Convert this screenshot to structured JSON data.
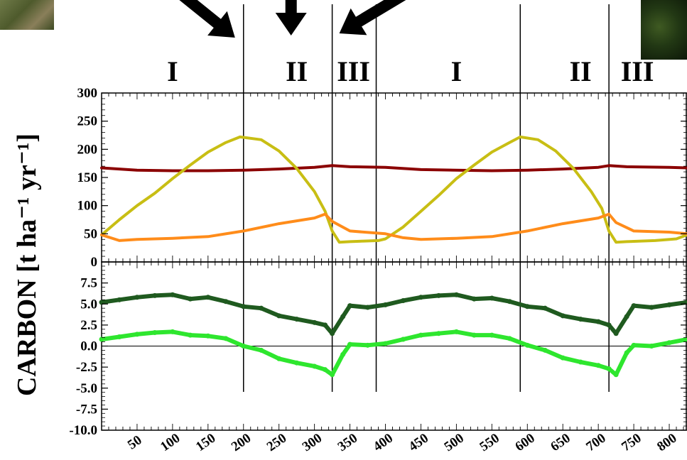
{
  "chart_data": {
    "type": "line",
    "ylabel": "CARBON [t ha⁻¹ yr⁻¹]",
    "xlim": [
      0,
      825
    ],
    "x_ticks": [
      50,
      100,
      150,
      200,
      250,
      300,
      350,
      400,
      450,
      500,
      550,
      600,
      650,
      700,
      750,
      800
    ],
    "phase_labels": [
      {
        "text": "I",
        "x": 100
      },
      {
        "text": "II",
        "x": 275
      },
      {
        "text": "III",
        "x": 355
      },
      {
        "text": "I",
        "x": 500
      },
      {
        "text": "II",
        "x": 675
      },
      {
        "text": "III",
        "x": 755
      }
    ],
    "phase_boundaries": [
      200,
      325,
      387,
      590,
      715
    ],
    "panels": [
      {
        "name": "top",
        "ylim": [
          0,
          300
        ],
        "y_ticks": [
          "300",
          "250",
          "200",
          "150",
          "100",
          "50",
          "0"
        ],
        "y_tick_values": [
          300,
          250,
          200,
          150,
          100,
          50,
          0
        ],
        "series": [
          {
            "color": "#8b0000",
            "x": [
              0,
              50,
              100,
              150,
              200,
              250,
              300,
              325,
              350,
              400,
              450,
              500,
              550,
              600,
              650,
              700,
              715,
              740,
              800,
              825
            ],
            "y": [
              167,
              163,
              162,
              162,
              163,
              165,
              168,
              171,
              169,
              168,
              164,
              163,
              162,
              163,
              165,
              168,
              171,
              169,
              168,
              167
            ]
          },
          {
            "color": "#c8be14",
            "x": [
              0,
              25,
              50,
              75,
              100,
              125,
              150,
              175,
              195,
              225,
              250,
              275,
              300,
              315,
              325,
              335,
              350,
              370,
              390,
              400,
              425,
              450,
              475,
              500,
              525,
              550,
              575,
              590,
              615,
              640,
              665,
              690,
              705,
              715,
              725,
              740,
              760,
              780,
              810,
              825
            ],
            "y": [
              48,
              75,
              100,
              122,
              148,
              172,
              195,
              212,
              222,
              217,
              197,
              166,
              125,
              90,
              55,
              35,
              36,
              37,
              38,
              41,
              62,
              90,
              118,
              148,
              172,
              195,
              212,
              222,
              217,
              197,
              166,
              125,
              95,
              55,
              35,
              36,
              37,
              38,
              41,
              48
            ]
          },
          {
            "color": "#ff8c1a",
            "x": [
              0,
              25,
              50,
              100,
              150,
              200,
              250,
              300,
              315,
              325,
              350,
              400,
              425,
              450,
              500,
              550,
              600,
              650,
              700,
              715,
              725,
              750,
              800,
              825
            ],
            "y": [
              48,
              38,
              40,
              42,
              45,
              55,
              68,
              78,
              85,
              72,
              55,
              50,
              43,
              40,
              42,
              45,
              55,
              68,
              78,
              85,
              70,
              55,
              53,
              50
            ]
          }
        ]
      },
      {
        "name": "bottom",
        "ylim": [
          -10,
          10
        ],
        "y_ticks": [
          "7.5",
          "5.0",
          "2.5",
          "0.0",
          "-2.5",
          "-5.0",
          "-7.5",
          "-10.0"
        ],
        "y_tick_values": [
          7.5,
          5.0,
          2.5,
          0.0,
          -2.5,
          -5.0,
          -7.5,
          -10.0
        ],
        "series": [
          {
            "color": "#1f5a1f",
            "x": [
              0,
              25,
              50,
              75,
              100,
              125,
              150,
              175,
              200,
              225,
              250,
              275,
              300,
              315,
              325,
              340,
              350,
              375,
              400,
              425,
              450,
              475,
              500,
              525,
              550,
              575,
              600,
              625,
              650,
              675,
              700,
              715,
              725,
              740,
              750,
              775,
              800,
              825
            ],
            "y": [
              5.2,
              5.5,
              5.8,
              6.0,
              6.1,
              5.6,
              5.8,
              5.3,
              4.7,
              4.5,
              3.6,
              3.2,
              2.8,
              2.5,
              1.5,
              3.5,
              4.8,
              4.6,
              4.9,
              5.4,
              5.8,
              6.0,
              6.1,
              5.6,
              5.7,
              5.3,
              4.7,
              4.5,
              3.6,
              3.2,
              2.9,
              2.5,
              1.5,
              3.5,
              4.8,
              4.6,
              4.9,
              5.2
            ]
          },
          {
            "color": "#2ee62e",
            "x": [
              0,
              25,
              50,
              75,
              100,
              125,
              150,
              175,
              200,
              225,
              250,
              275,
              300,
              315,
              325,
              340,
              350,
              375,
              400,
              425,
              450,
              475,
              500,
              525,
              550,
              575,
              600,
              625,
              650,
              675,
              700,
              715,
              725,
              740,
              750,
              775,
              800,
              825
            ],
            "y": [
              0.8,
              1.1,
              1.4,
              1.6,
              1.7,
              1.3,
              1.2,
              0.9,
              0.0,
              -0.5,
              -1.5,
              -2.0,
              -2.4,
              -2.8,
              -3.4,
              -1.0,
              0.2,
              0.1,
              0.3,
              0.8,
              1.3,
              1.5,
              1.7,
              1.3,
              1.3,
              0.9,
              0.1,
              -0.5,
              -1.4,
              -1.9,
              -2.3,
              -2.7,
              -3.4,
              -0.8,
              0.1,
              0.0,
              0.4,
              0.8
            ]
          }
        ]
      }
    ],
    "arrows": [
      {
        "from_x": 80,
        "from_y": -34,
        "to_x": 188,
        "to_y": 53
      },
      {
        "from_x": 267,
        "from_y": -34,
        "to_x": 267,
        "to_y": 50
      },
      {
        "from_x": 470,
        "from_y": -34,
        "to_x": 335,
        "to_y": 47
      }
    ],
    "photo_colors": [
      "#5b6b3a",
      "#1e2e10"
    ]
  }
}
